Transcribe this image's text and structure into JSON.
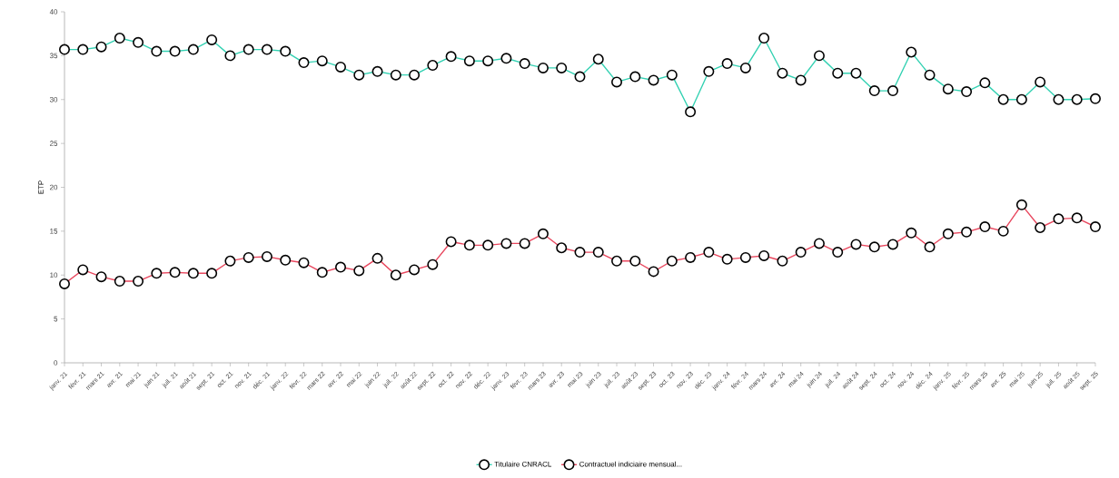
{
  "chart_data": {
    "type": "line",
    "ylabel": "ETP",
    "categories": [
      "janv. 21",
      "févr. 21",
      "mars 21",
      "avr. 21",
      "mai 21",
      "juin 21",
      "juil. 21",
      "août 21",
      "sept. 21",
      "oct. 21",
      "nov. 21",
      "déc. 21",
      "janv. 22",
      "févr. 22",
      "mars 22",
      "avr. 22",
      "mai 22",
      "juin 22",
      "juil. 22",
      "août 22",
      "sept. 22",
      "oct. 22",
      "nov. 22",
      "déc. 22",
      "janv. 23",
      "févr. 23",
      "mars 23",
      "avr. 23",
      "mai 23",
      "juin 23",
      "juil. 23",
      "août 23",
      "sept. 23",
      "oct. 23",
      "nov. 23",
      "déc. 23",
      "janv. 24",
      "févr. 24",
      "mars 24",
      "avr. 24",
      "mai 24",
      "juin 24",
      "juil. 24",
      "août 24",
      "sept. 24",
      "oct. 24",
      "nov. 24",
      "déc. 24",
      "janv. 25",
      "févr. 25",
      "mars 25",
      "avr. 25",
      "mai 25",
      "juin 25",
      "juil. 25",
      "août 25",
      "sept. 25"
    ],
    "series": [
      {
        "name": "Titulaire CNRACL",
        "color": "#33d1b2",
        "values": [
          35.7,
          35.7,
          36.0,
          37.0,
          36.5,
          35.5,
          35.5,
          35.7,
          36.8,
          35.0,
          35.7,
          35.7,
          35.5,
          34.2,
          34.4,
          33.7,
          32.8,
          33.2,
          32.8,
          32.8,
          33.9,
          34.9,
          34.4,
          34.4,
          34.7,
          34.1,
          33.6,
          33.6,
          32.6,
          34.6,
          32.0,
          32.6,
          32.2,
          32.8,
          28.6,
          33.2,
          34.1,
          33.6,
          37.0,
          33.0,
          32.2,
          35.0,
          33.0,
          33.0,
          31.0,
          31.0,
          35.4,
          32.8,
          31.2,
          30.9,
          31.9,
          30.0,
          30.0,
          32.0,
          30.0,
          30.0,
          30.1
        ]
      },
      {
        "name": "Contractuel indiciaire mensual...",
        "color": "#e8475e",
        "values": [
          9.0,
          10.6,
          9.8,
          9.3,
          9.3,
          10.2,
          10.3,
          10.2,
          10.2,
          11.6,
          12.0,
          12.1,
          11.7,
          11.4,
          10.3,
          10.9,
          10.5,
          11.9,
          10.0,
          10.6,
          11.2,
          13.8,
          13.4,
          13.4,
          13.6,
          13.6,
          14.7,
          13.1,
          12.6,
          12.6,
          11.6,
          11.6,
          10.4,
          11.6,
          12.0,
          12.6,
          11.8,
          12.0,
          12.2,
          11.6,
          12.6,
          13.6,
          12.6,
          13.5,
          13.2,
          13.5,
          14.8,
          13.2,
          14.7,
          14.9,
          15.5,
          15.0,
          18.0,
          15.4,
          16.4,
          16.5,
          15.5
        ]
      }
    ],
    "ylim": [
      0,
      40
    ],
    "yticks": [
      0,
      5,
      10,
      15,
      20,
      25,
      30,
      35,
      40
    ],
    "legend": "bottom",
    "marker": "circle",
    "line_style": "solid"
  }
}
